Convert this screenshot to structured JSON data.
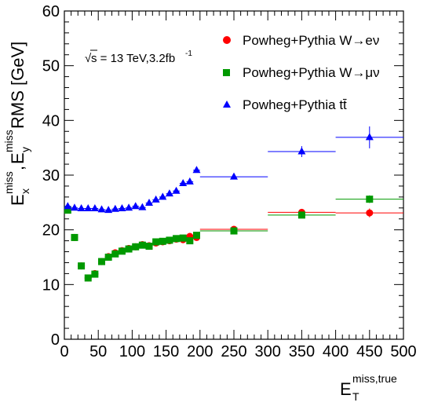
{
  "chart_data": {
    "type": "scatter",
    "x_axis": {
      "range": [
        0,
        500
      ],
      "ticks": [
        0,
        50,
        100,
        150,
        200,
        250,
        300,
        350,
        400,
        450,
        500
      ],
      "label_main": "E",
      "label_sub": "T",
      "label_sup": "miss,true"
    },
    "y_axis": {
      "range": [
        0,
        60
      ],
      "ticks": [
        0,
        10,
        20,
        30,
        40,
        50,
        60
      ],
      "label_prefix": "E",
      "label_x_sub": "x",
      "label_y_sub": "y",
      "label_sup": "miss",
      "label_sep": ",",
      "label_suffix": " RMS [GeV]"
    },
    "annotation": {
      "sqrt": "√",
      "text": "s = 13 TeV,3.2fb",
      "sup": "-1"
    },
    "legend_position": "top-right",
    "series": [
      {
        "name": "Powheg+Pythia W→eν",
        "marker": "circle",
        "color": "#ff0000",
        "points": [
          {
            "x": 5,
            "y": 23.9,
            "xerr": 5
          },
          {
            "x": 15,
            "y": 18.6,
            "xerr": 5
          },
          {
            "x": 25,
            "y": 13.4,
            "xerr": 5
          },
          {
            "x": 35,
            "y": 11.2,
            "xerr": 5
          },
          {
            "x": 45,
            "y": 12.0,
            "xerr": 5
          },
          {
            "x": 55,
            "y": 14.2,
            "xerr": 5
          },
          {
            "x": 65,
            "y": 15.1,
            "xerr": 5
          },
          {
            "x": 75,
            "y": 15.8,
            "xerr": 5
          },
          {
            "x": 85,
            "y": 16.2,
            "xerr": 5
          },
          {
            "x": 95,
            "y": 16.6,
            "xerr": 5
          },
          {
            "x": 105,
            "y": 16.9,
            "xerr": 5
          },
          {
            "x": 115,
            "y": 17.3,
            "xerr": 5
          },
          {
            "x": 125,
            "y": 17.1,
            "xerr": 5
          },
          {
            "x": 135,
            "y": 17.6,
            "xerr": 5
          },
          {
            "x": 145,
            "y": 17.8,
            "xerr": 5
          },
          {
            "x": 155,
            "y": 18.0,
            "xerr": 5
          },
          {
            "x": 165,
            "y": 18.3,
            "xerr": 5
          },
          {
            "x": 175,
            "y": 18.2,
            "xerr": 5
          },
          {
            "x": 185,
            "y": 18.8,
            "xerr": 5
          },
          {
            "x": 195,
            "y": 18.6,
            "xerr": 5
          },
          {
            "x": 250,
            "y": 20.1,
            "xerr": 50
          },
          {
            "x": 350,
            "y": 23.2,
            "xerr": 50
          },
          {
            "x": 450,
            "y": 23.1,
            "xerr": 50,
            "yerr": 0.8
          }
        ]
      },
      {
        "name": "Powheg+Pythia W→μν",
        "marker": "square",
        "color": "#009900",
        "points": [
          {
            "x": 5,
            "y": 23.6,
            "xerr": 5
          },
          {
            "x": 15,
            "y": 18.6,
            "xerr": 5
          },
          {
            "x": 25,
            "y": 13.4,
            "xerr": 5
          },
          {
            "x": 35,
            "y": 11.2,
            "xerr": 5
          },
          {
            "x": 45,
            "y": 11.9,
            "xerr": 5
          },
          {
            "x": 55,
            "y": 14.2,
            "xerr": 5
          },
          {
            "x": 65,
            "y": 15.0,
            "xerr": 5
          },
          {
            "x": 75,
            "y": 15.6,
            "xerr": 5
          },
          {
            "x": 85,
            "y": 16.1,
            "xerr": 5
          },
          {
            "x": 95,
            "y": 16.5,
            "xerr": 5
          },
          {
            "x": 105,
            "y": 16.9,
            "xerr": 5
          },
          {
            "x": 115,
            "y": 17.2,
            "xerr": 5
          },
          {
            "x": 125,
            "y": 17.0,
            "xerr": 5
          },
          {
            "x": 135,
            "y": 17.8,
            "xerr": 5
          },
          {
            "x": 145,
            "y": 17.9,
            "xerr": 5
          },
          {
            "x": 155,
            "y": 18.1,
            "xerr": 5
          },
          {
            "x": 165,
            "y": 18.4,
            "xerr": 5
          },
          {
            "x": 175,
            "y": 18.5,
            "xerr": 5
          },
          {
            "x": 185,
            "y": 18.0,
            "xerr": 5
          },
          {
            "x": 195,
            "y": 19.0,
            "xerr": 5
          },
          {
            "x": 250,
            "y": 19.8,
            "xerr": 50
          },
          {
            "x": 350,
            "y": 22.7,
            "xerr": 50
          },
          {
            "x": 450,
            "y": 25.6,
            "xerr": 50,
            "yerr": 0.7
          }
        ]
      },
      {
        "name": "Powheg+Pythia tt̄",
        "marker": "triangle",
        "color": "#0000ff",
        "points": [
          {
            "x": 5,
            "y": 24.3,
            "xerr": 5
          },
          {
            "x": 15,
            "y": 24.0,
            "xerr": 5
          },
          {
            "x": 25,
            "y": 23.9,
            "xerr": 5
          },
          {
            "x": 35,
            "y": 23.9,
            "xerr": 5
          },
          {
            "x": 45,
            "y": 23.9,
            "xerr": 5
          },
          {
            "x": 55,
            "y": 23.7,
            "xerr": 5
          },
          {
            "x": 65,
            "y": 23.6,
            "xerr": 5
          },
          {
            "x": 75,
            "y": 23.8,
            "xerr": 5
          },
          {
            "x": 85,
            "y": 23.9,
            "xerr": 5
          },
          {
            "x": 95,
            "y": 24.0,
            "xerr": 5
          },
          {
            "x": 105,
            "y": 24.3,
            "xerr": 5
          },
          {
            "x": 115,
            "y": 24.1,
            "xerr": 5
          },
          {
            "x": 125,
            "y": 24.9,
            "xerr": 5
          },
          {
            "x": 135,
            "y": 25.5,
            "xerr": 5
          },
          {
            "x": 145,
            "y": 26.0,
            "xerr": 5
          },
          {
            "x": 155,
            "y": 26.6,
            "xerr": 5
          },
          {
            "x": 165,
            "y": 27.1,
            "xerr": 5
          },
          {
            "x": 175,
            "y": 28.5,
            "xerr": 5
          },
          {
            "x": 185,
            "y": 28.8,
            "xerr": 5
          },
          {
            "x": 195,
            "y": 30.9,
            "xerr": 5
          },
          {
            "x": 250,
            "y": 29.7,
            "xerr": 50
          },
          {
            "x": 350,
            "y": 34.3,
            "xerr": 50,
            "yerr": 1.0
          },
          {
            "x": 450,
            "y": 36.9,
            "xerr": 50,
            "yerr": 2.0
          }
        ]
      }
    ]
  }
}
